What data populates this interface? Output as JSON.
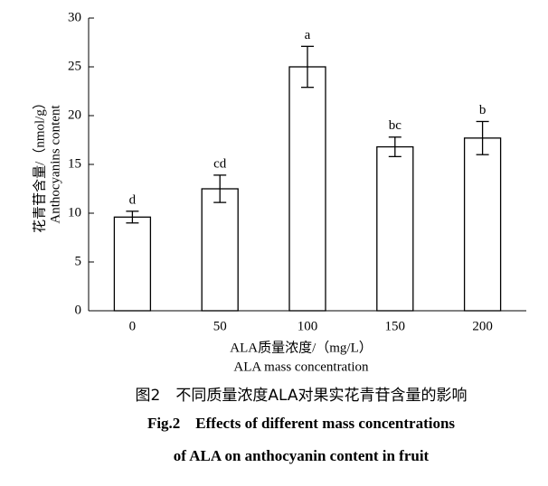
{
  "chart_data": {
    "type": "bar",
    "y_label": [
      "花青苷含量/（nmol/g）",
      "Anthocyanins content"
    ],
    "x_label": [
      "ALA质量浓度/（mg/L）",
      "ALA mass concentration"
    ],
    "categories": [
      "0",
      "50",
      "100",
      "150",
      "200"
    ],
    "values": [
      9.6,
      12.5,
      25.0,
      16.8,
      17.7
    ],
    "errors": [
      0.6,
      1.4,
      2.1,
      1.0,
      1.7
    ],
    "letters": [
      "d",
      "cd",
      "a",
      "bc",
      "b"
    ],
    "color": "#ffffff",
    "ylim": [
      0,
      30
    ],
    "yticks": [
      0,
      5,
      10,
      15,
      20,
      25,
      30
    ]
  },
  "caption": [
    "图2　不同质量浓度ALA对果实花青苷含量的影响",
    "Fig.2　Effects of different mass concentrations",
    "of ALA on anthocyanin content in fruit"
  ]
}
